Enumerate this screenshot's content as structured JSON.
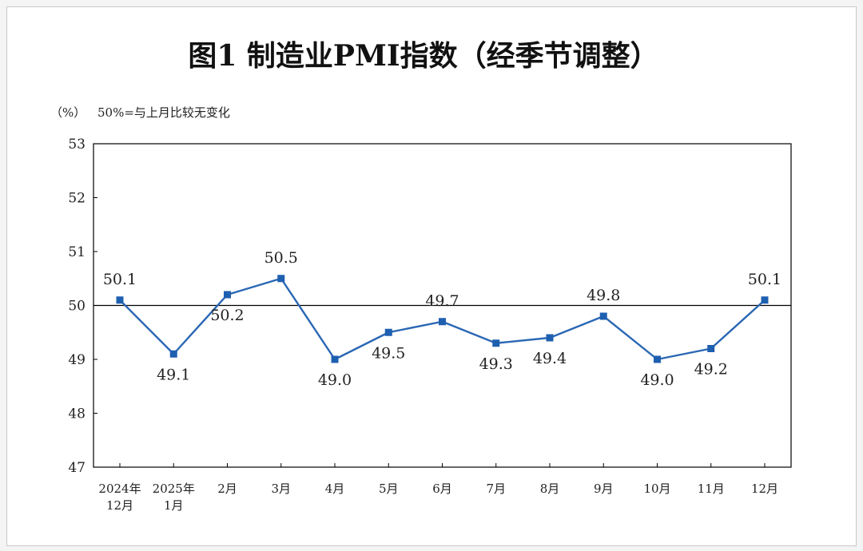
{
  "title": "图1  制造业PMI指数（经季节调整）",
  "unit_label": "（%）",
  "note": "50%=与上月比较无变化",
  "colors": {
    "line": "#2a67b4",
    "marker": "#1e5fb0",
    "axis": "#000000"
  },
  "chart_data": {
    "type": "line",
    "title": "图1  制造业PMI指数（经季节调整）",
    "ylabel": "（%）",
    "xlabel": "",
    "ylim": [
      47,
      53
    ],
    "y_ticks": [
      47,
      48,
      49,
      50,
      51,
      52,
      53
    ],
    "reference_line": 50,
    "grid": false,
    "categories": [
      [
        "2024年",
        "12月"
      ],
      [
        "2025年",
        "1月"
      ],
      [
        "2月"
      ],
      [
        "3月"
      ],
      [
        "4月"
      ],
      [
        "5月"
      ],
      [
        "6月"
      ],
      [
        "7月"
      ],
      [
        "8月"
      ],
      [
        "9月"
      ],
      [
        "10月"
      ],
      [
        "11月"
      ],
      [
        "12月"
      ]
    ],
    "series": [
      {
        "values": [
          50.1,
          49.1,
          50.2,
          50.5,
          49.0,
          49.5,
          49.7,
          49.3,
          49.4,
          49.8,
          49.0,
          49.2,
          50.1
        ],
        "labels": [
          "50.1",
          "49.1",
          "50.2",
          "50.5",
          "49.0",
          "49.5",
          "49.7",
          "49.3",
          "49.4",
          "49.8",
          "49.0",
          "49.2",
          "50.1"
        ]
      }
    ]
  }
}
